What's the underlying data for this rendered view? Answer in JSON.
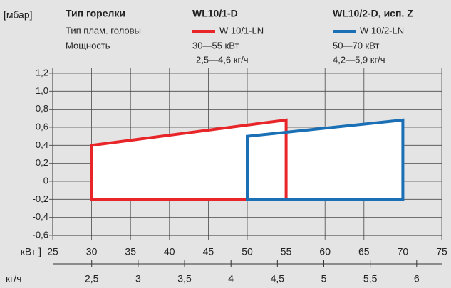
{
  "chart_data": {
    "type": "polygon",
    "y_label": "[мбар]",
    "x_label": "кВт ]",
    "x2_label": "кг/ч",
    "header": {
      "row_labels": [
        "Тип горелки",
        "Тип плам. головы",
        "Мощность"
      ],
      "columns": [
        {
          "title": "WL10/1-D",
          "power": "30—55 кВт",
          "flow": "2,5—4,6 кг/ч"
        },
        {
          "title": "WL10/2-D, исп. Z",
          "power": "50—70 кВт",
          "flow": "4,2—5,9 кг/ч"
        }
      ]
    },
    "series": [
      {
        "name": "W 10/1-LN",
        "color": "#e8262a",
        "x": [
          30,
          30,
          55,
          55
        ],
        "values": [
          -0.2,
          0.4,
          0.68,
          -0.2
        ]
      },
      {
        "name": "W 10/2-LN",
        "color": "#1a6fb5",
        "x": [
          50,
          50,
          70,
          70
        ],
        "values": [
          -0.2,
          0.5,
          0.68,
          -0.2
        ]
      }
    ],
    "xlim": [
      25,
      75
    ],
    "xticks": [
      25,
      30,
      35,
      40,
      45,
      50,
      55,
      60,
      65,
      70,
      75
    ],
    "ylim": [
      -0.6,
      1.2
    ],
    "yticks": [
      {
        "value": -0.6,
        "label": "-0,6"
      },
      {
        "value": -0.4,
        "label": "-0,4"
      },
      {
        "value": -0.2,
        "label": "-0,2"
      },
      0,
      {
        "value": 0.2,
        "label": "0,2"
      },
      {
        "value": 0.4,
        "label": "0,4"
      },
      {
        "value": 0.6,
        "label": "0,6"
      },
      {
        "value": 0.8,
        "label": "0,8"
      },
      {
        "value": 1.0,
        "label": "1,0"
      },
      {
        "value": 1.2,
        "label": "1,2"
      }
    ],
    "x2lim": [
      2.08,
      6.27
    ],
    "x2ticks": [
      {
        "value": 2.5,
        "label": "2,5"
      },
      3,
      {
        "value": 3.5,
        "label": "3,5"
      },
      4,
      {
        "value": 4.5,
        "label": "4,5"
      },
      5,
      {
        "value": 5.5,
        "label": "5,5"
      },
      6
    ],
    "grid": true
  }
}
